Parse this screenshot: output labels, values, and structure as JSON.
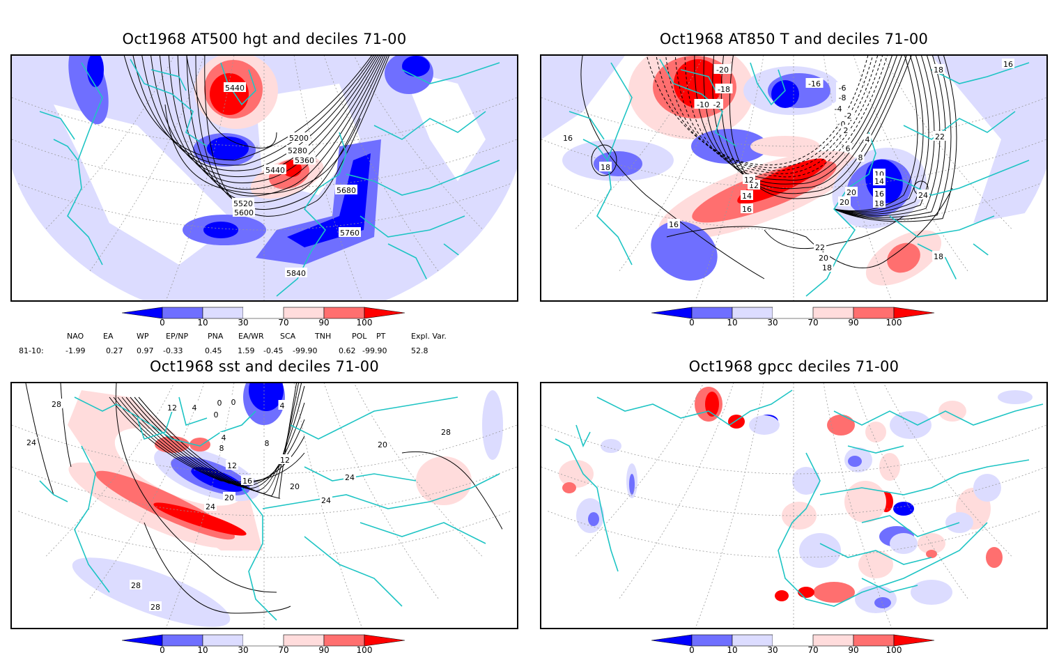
{
  "chart_data": [
    {
      "type": "heatmap",
      "title": "Oct1968 AT500 hgt and deciles 71-00",
      "contour_variable": "500 hPa geopotential height",
      "contour_labels": [
        "5440",
        "5200",
        "5280",
        "5360",
        "5440",
        "5520",
        "5600",
        "5680",
        "5760",
        "5840"
      ],
      "colorbar": {
        "ticks": [
          "0",
          "10",
          "30",
          "70",
          "90",
          "100"
        ]
      }
    },
    {
      "type": "heatmap",
      "title": "Oct1968 AT850 T and deciles 71-00",
      "contour_variable": "850 hPa temperature",
      "contour_labels": [
        "-20",
        "-16",
        "-18",
        "-10",
        "-2",
        "-6",
        "-8",
        "-4",
        "-2",
        "0",
        "2",
        "4",
        "6",
        "8",
        "10",
        "12",
        "14",
        "16",
        "18",
        "20",
        "22",
        "24",
        "16",
        "18",
        "16",
        "18",
        "22",
        "20",
        "18",
        "16",
        "18",
        "12",
        "14",
        "16",
        "20"
      ],
      "colorbar": {
        "ticks": [
          "0",
          "10",
          "30",
          "70",
          "90",
          "100"
        ]
      }
    },
    {
      "type": "heatmap",
      "title": "Oct1968 sst and deciles 71-00",
      "contour_variable": "sea surface temperature",
      "contour_labels": [
        "28",
        "24",
        "12",
        "4",
        "0",
        "0",
        "0",
        "4",
        "4",
        "8",
        "8",
        "12",
        "16",
        "20",
        "24",
        "12",
        "20",
        "20",
        "24",
        "24",
        "28",
        "28",
        "28"
      ],
      "colorbar": {
        "ticks": [
          "0",
          "10",
          "30",
          "70",
          "90",
          "100"
        ]
      }
    },
    {
      "type": "heatmap",
      "title": "Oct1968 gpcc deciles 71-00",
      "contour_variable": "precipitation deciles",
      "contour_labels": [],
      "colorbar": {
        "ticks": [
          "0",
          "10",
          "30",
          "70",
          "90",
          "100"
        ]
      }
    }
  ],
  "colorscale": {
    "bins": [
      "<0",
      "0-10",
      "10-30",
      "30-70",
      "70-90",
      "90-100",
      ">100"
    ],
    "colors": [
      "#0000ff",
      "#6f6fff",
      "#dcdcff",
      "#ffffff",
      "#ffdcdc",
      "#ff6f6f",
      "#ff0000"
    ]
  },
  "coast_color": "#1ec4c4",
  "indices": {
    "headers": [
      "NAO",
      "EA",
      "WP",
      "EP/NP",
      "PNA",
      "EA/WR",
      "SCA",
      "TNH",
      "POL",
      "PT",
      "Expl. Var."
    ],
    "row_label": "81-10:",
    "values": [
      "-1.99",
      "0.27",
      "0.97",
      "-0.33",
      "0.45",
      "1.59",
      "-0.45",
      "-99.90",
      "0.62",
      "-99.90",
      "52.8"
    ]
  }
}
